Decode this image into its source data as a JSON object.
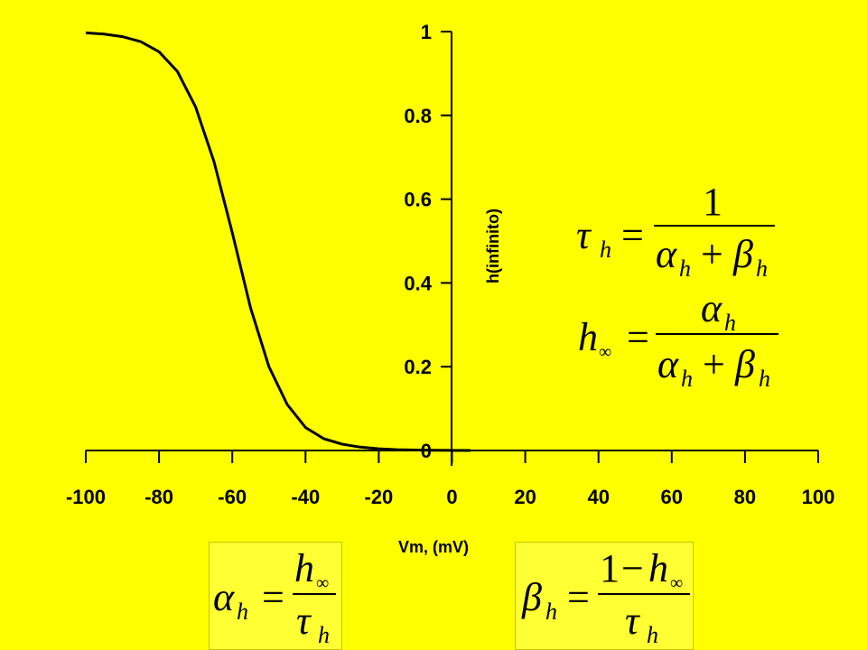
{
  "chart_data": {
    "type": "line",
    "title": "",
    "xlabel": "Vm, (mV)",
    "ylabel": "h(infinito)",
    "xlim": [
      -100,
      100
    ],
    "ylim": [
      0,
      1
    ],
    "x_ticks": [
      "-100",
      "-80",
      "-60",
      "-40",
      "-20",
      "0",
      "20",
      "40",
      "60",
      "80",
      "100"
    ],
    "y_ticks": [
      "0",
      "0.2",
      "0.4",
      "0.6",
      "0.8",
      "1"
    ],
    "grid": false,
    "series": [
      {
        "x": [
          -100,
          -95,
          -90,
          -85,
          -80,
          -75,
          -70,
          -65,
          -60,
          -55,
          -50,
          -45,
          -40,
          -35,
          -30,
          -25,
          -20,
          -15,
          -10,
          -5,
          0,
          5
        ],
        "y": [
          0.997,
          0.994,
          0.988,
          0.976,
          0.952,
          0.905,
          0.82,
          0.69,
          0.52,
          0.34,
          0.2,
          0.11,
          0.055,
          0.028,
          0.015,
          0.008,
          0.004,
          0.002,
          0.001,
          0.0006,
          0.0003,
          0.0001
        ]
      }
    ]
  },
  "colors": {
    "background": "#ffff00",
    "line": "#000000"
  },
  "equations": {
    "tau_h": {
      "lhs": "τ",
      "lhs_sub": "h",
      "eq": "=",
      "numerator": "1",
      "den_a": "α",
      "den_a_sub": "h",
      "plus": "+",
      "den_b": "β",
      "den_b_sub": "h"
    },
    "h_inf": {
      "lhs": "h",
      "lhs_sub": "∞",
      "eq": "=",
      "num": "α",
      "num_sub": "h",
      "den_a": "α",
      "den_a_sub": "h",
      "plus": "+",
      "den_b": "β",
      "den_b_sub": "h"
    },
    "alpha_h": {
      "lhs": "α",
      "lhs_sub": "h",
      "eq": "=",
      "num": "h",
      "num_sub": "∞",
      "den": "τ",
      "den_sub": "h"
    },
    "beta_h": {
      "lhs": "β",
      "lhs_sub": "h",
      "eq": "=",
      "num_one": "1",
      "minus": "−",
      "num": "h",
      "num_sub": "∞",
      "den": "τ",
      "den_sub": "h"
    }
  }
}
